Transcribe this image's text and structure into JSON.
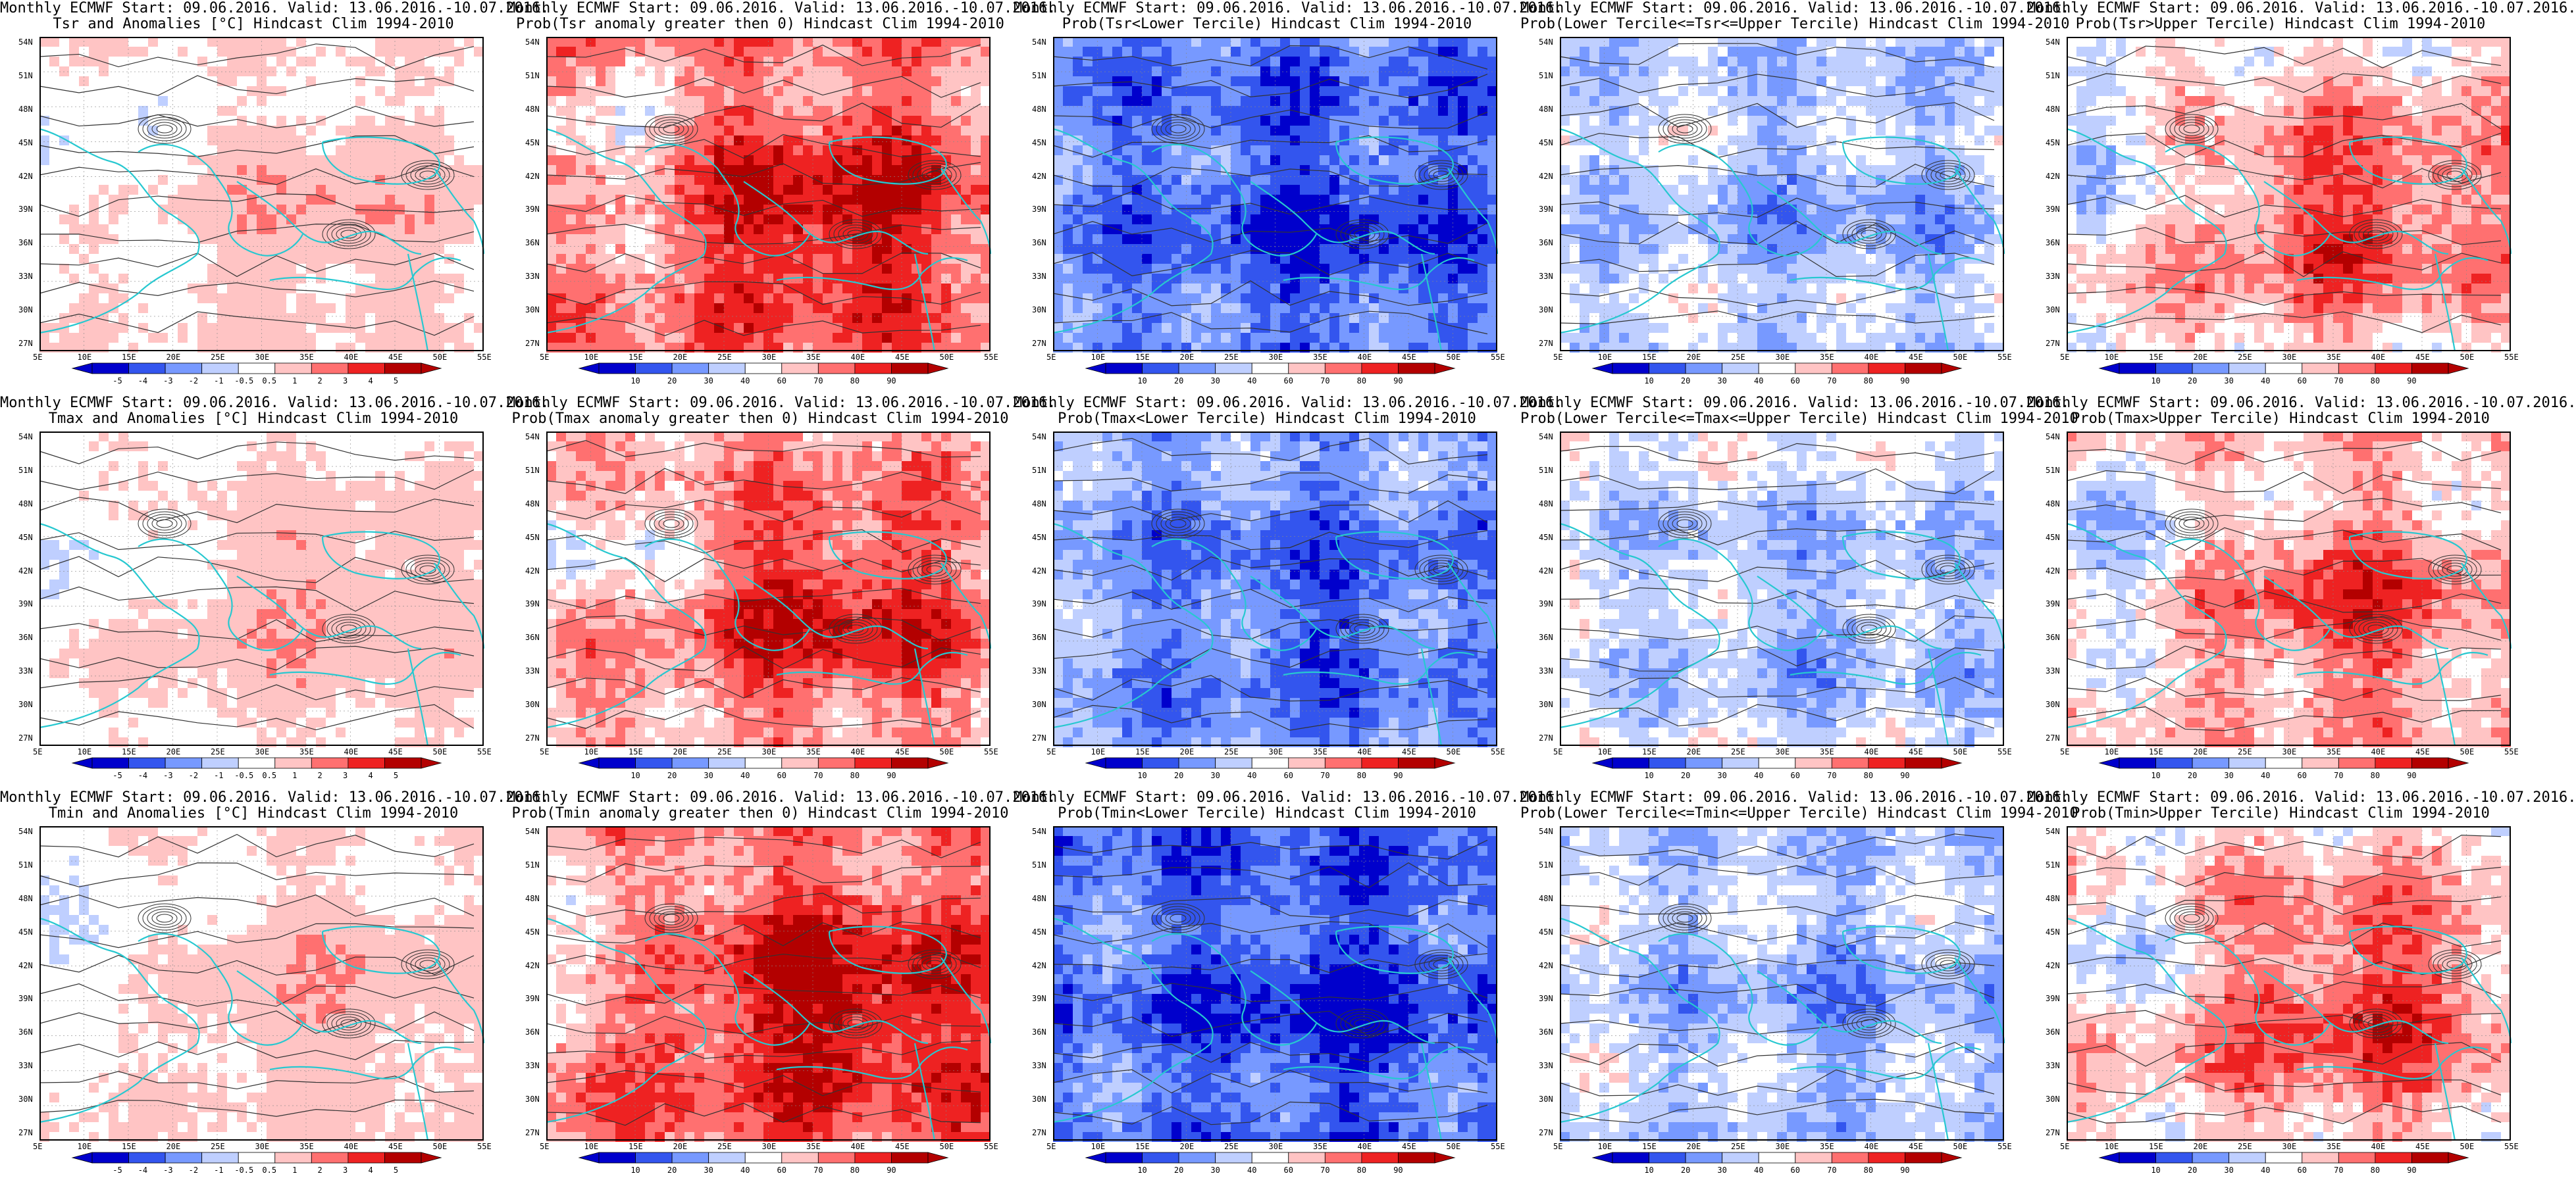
{
  "latitude_labels": [
    "54N",
    "51N",
    "48N",
    "45N",
    "42N",
    "39N",
    "36N",
    "33N",
    "30N",
    "27N"
  ],
  "longitude_labels": [
    "5E",
    "10E",
    "15E",
    "20E",
    "25E",
    "30E",
    "35E",
    "40E",
    "45E",
    "50E",
    "55E"
  ],
  "anomaly_colorbar_labels": [
    "-5",
    "-4",
    "-3",
    "-2",
    "-1",
    "-0.5",
    "0.5",
    "1",
    "2",
    "3",
    "4",
    "5"
  ],
  "probability_colorbar_labels": [
    "10",
    "20",
    "30",
    "40",
    "60",
    "70",
    "80",
    "90"
  ],
  "colors": {
    "deep_blue": "#0000cc",
    "blue": "#3355ee",
    "mid_blue": "#7799ff",
    "light_blue": "#bfcfff",
    "white": "#ffffff",
    "light_red": "#ffc4c4",
    "mid_red": "#ff7070",
    "red": "#ee2222",
    "deep_red": "#b30000",
    "coastline": "#27c8d0",
    "contour": "#333333"
  },
  "panels": [
    {
      "title1": "Monthly ECMWF Start: 09.06.2016. Valid: 13.06.2016.-10.07.2016.",
      "title2": "Tsr and Anomalies [°C] Hindcast Clim 1994-2010",
      "kind": "anomaly",
      "bias": 0.7
    },
    {
      "title1": "Monthly ECMWF Start: 09.06.2016. Valid: 13.06.2016.-10.07.2016.",
      "title2": "Prob(Tsr anomaly greater then 0) Hindcast Clim 1994-2010",
      "kind": "prob_hot",
      "bias": 1.6
    },
    {
      "title1": "Monthly ECMWF Start: 09.06.2016. Valid: 13.06.2016.-10.07.2016.",
      "title2": "Prob(Tsr<Lower Tercile) Hindcast Clim 1994-2010",
      "kind": "prob_cold",
      "bias": -2.2
    },
    {
      "title1": "Monthly ECMWF Start: 09.06.2016. Valid: 13.06.2016.-10.07.2016.",
      "title2": "Prob(Lower Tercile<=Tsr<=Upper Tercile) Hindcast Clim 1994-2010",
      "kind": "prob_mid",
      "bias": -0.7
    },
    {
      "title1": "Monthly ECMWF Start: 09.06.2016. Valid: 13.06.2016.-10.07.2016.",
      "title2": "Prob(Tsr>Upper Tercile) Hindcast Clim 1994-2010",
      "kind": "prob_hot",
      "bias": 0.6
    },
    {
      "title1": "Monthly ECMWF Start: 09.06.2016. Valid: 13.06.2016.-10.07.2016.",
      "title2": "Tmax and Anomalies [°C] Hindcast Clim 1994-2010",
      "kind": "anomaly",
      "bias": 0.8
    },
    {
      "title1": "Monthly ECMWF Start: 09.06.2016. Valid: 13.06.2016.-10.07.2016.",
      "title2": "Prob(Tmax anomaly greater then 0) Hindcast Clim 1994-2010",
      "kind": "prob_hot",
      "bias": 1.2
    },
    {
      "title1": "Monthly ECMWF Start: 09.06.2016. Valid: 13.06.2016.-10.07.2016.",
      "title2": "Prob(Tmax<Lower Tercile) Hindcast Clim 1994-2010",
      "kind": "prob_cold",
      "bias": -1.7
    },
    {
      "title1": "Monthly ECMWF Start: 09.06.2016. Valid: 13.06.2016.-10.07.2016.",
      "title2": "Prob(Lower Tercile<=Tmax<=Upper Tercile) Hindcast Clim 1994-2010",
      "kind": "prob_mid",
      "bias": -0.6
    },
    {
      "title1": "Monthly ECMWF Start: 09.06.2016. Valid: 13.06.2016.-10.07.2016.",
      "title2": "Prob(Tmax>Upper Tercile) Hindcast Clim 1994-2010",
      "kind": "prob_hot",
      "bias": 0.5
    },
    {
      "title1": "Monthly ECMWF Start: 09.06.2016. Valid: 13.06.2016.-10.07.2016.",
      "title2": "Tmin and Anomalies [°C] Hindcast Clim 1994-2010",
      "kind": "anomaly",
      "bias": 0.7
    },
    {
      "title1": "Monthly ECMWF Start: 09.06.2016. Valid: 13.06.2016.-10.07.2016.",
      "title2": "Prob(Tmin anomaly greater then 0) Hindcast Clim 1994-2010",
      "kind": "prob_hot",
      "bias": 1.8
    },
    {
      "title1": "Monthly ECMWF Start: 09.06.2016. Valid: 13.06.2016.-10.07.2016.",
      "title2": "Prob(Tmin<Lower Tercile) Hindcast Clim 1994-2010",
      "kind": "prob_cold",
      "bias": -2.4
    },
    {
      "title1": "Monthly ECMWF Start: 09.06.2016. Valid: 13.06.2016.-10.07.2016.",
      "title2": "Prob(Lower Tercile<=Tmin<=Upper Tercile) Hindcast Clim 1994-2010",
      "kind": "prob_mid",
      "bias": -0.8
    },
    {
      "title1": "Monthly ECMWF Start: 09.06.2016. Valid: 13.06.2016.-10.07.2016.",
      "title2": "Prob(Tmin>Upper Tercile) Hindcast Clim 1994-2010",
      "kind": "prob_hot",
      "bias": 0.7
    }
  ]
}
